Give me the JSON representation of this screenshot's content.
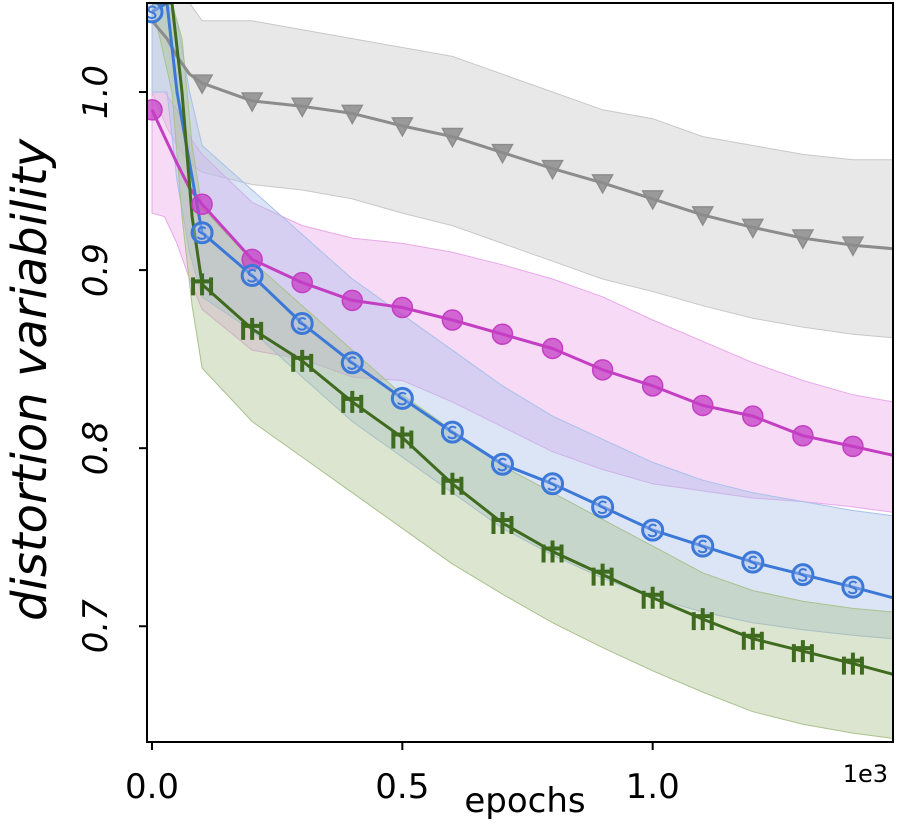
{
  "chart_data": {
    "type": "line",
    "xlabel": "epochs",
    "ylabel": "distortion variability",
    "x_offset_label": "1e3",
    "xlim": [
      -0.01,
      1.48
    ],
    "ylim": [
      0.635,
      1.05
    ],
    "xticks": [
      0.0,
      0.5,
      1.0
    ],
    "xtick_labels": [
      "0.0",
      "0.5",
      "1.0"
    ],
    "yticks": [
      0.7,
      0.8,
      0.9,
      1.0
    ],
    "ytick_labels": [
      "0.7",
      "0.8",
      "0.9",
      "1.0"
    ],
    "grid": false,
    "legend": "none",
    "series": [
      {
        "color": "#8c8c8c",
        "band_color": "#c8c8c8",
        "marker": "triangle-down",
        "x": [
          0.0,
          0.03,
          0.05,
          0.075,
          0.1,
          0.2,
          0.3,
          0.4,
          0.5,
          0.6,
          0.7,
          0.8,
          0.9,
          1.0,
          1.1,
          1.2,
          1.3,
          1.4,
          1.48
        ],
        "y": [
          1.04,
          1.03,
          1.02,
          1.01,
          1.005,
          0.995,
          0.992,
          0.988,
          0.981,
          0.975,
          0.966,
          0.957,
          0.949,
          0.94,
          0.931,
          0.924,
          0.918,
          0.914,
          0.912
        ],
        "upper": [
          1.05,
          1.05,
          1.05,
          1.05,
          1.04,
          1.04,
          1.035,
          1.03,
          1.025,
          1.02,
          1.01,
          1.0,
          0.99,
          0.985,
          0.975,
          0.97,
          0.965,
          0.962,
          0.962
        ],
        "lower": [
          1.0,
          0.98,
          0.97,
          0.96,
          0.955,
          0.948,
          0.945,
          0.94,
          0.932,
          0.925,
          0.915,
          0.905,
          0.895,
          0.888,
          0.88,
          0.873,
          0.868,
          0.864,
          0.862
        ],
        "marker_x": [
          0.1,
          0.2,
          0.3,
          0.4,
          0.5,
          0.6,
          0.7,
          0.8,
          0.9,
          1.0,
          1.1,
          1.2,
          1.3,
          1.4
        ],
        "marker_y": [
          1.005,
          0.995,
          0.992,
          0.988,
          0.981,
          0.975,
          0.966,
          0.957,
          0.949,
          0.94,
          0.931,
          0.924,
          0.918,
          0.914
        ]
      },
      {
        "color": "#c43ec4",
        "band_color": "#e9a8e9",
        "marker": "circle",
        "x": [
          0.0,
          0.025,
          0.05,
          0.075,
          0.1,
          0.2,
          0.3,
          0.4,
          0.5,
          0.6,
          0.7,
          0.8,
          0.9,
          1.0,
          1.1,
          1.2,
          1.3,
          1.4,
          1.48
        ],
        "y": [
          0.99,
          0.975,
          0.96,
          0.946,
          0.937,
          0.906,
          0.893,
          0.883,
          0.879,
          0.872,
          0.864,
          0.856,
          0.844,
          0.835,
          0.824,
          0.818,
          0.807,
          0.801,
          0.796
        ],
        "upper": [
          1.0,
          1.0,
          0.99,
          0.975,
          0.965,
          0.938,
          0.925,
          0.918,
          0.915,
          0.91,
          0.903,
          0.895,
          0.885,
          0.872,
          0.86,
          0.848,
          0.838,
          0.83,
          0.826
        ],
        "lower": [
          0.932,
          0.93,
          0.915,
          0.895,
          0.878,
          0.855,
          0.85,
          0.84,
          0.838,
          0.826,
          0.812,
          0.798,
          0.788,
          0.78,
          0.776,
          0.772,
          0.77,
          0.767,
          0.764
        ],
        "marker_x": [
          0.0,
          0.1,
          0.2,
          0.3,
          0.4,
          0.5,
          0.6,
          0.7,
          0.8,
          0.9,
          1.0,
          1.1,
          1.2,
          1.3,
          1.4
        ],
        "marker_y": [
          0.99,
          0.937,
          0.906,
          0.893,
          0.883,
          0.879,
          0.872,
          0.864,
          0.856,
          0.844,
          0.835,
          0.824,
          0.818,
          0.807,
          0.801
        ]
      },
      {
        "color": "#3c78d8",
        "band_color": "#a9c0ea",
        "marker": "circled-s",
        "x": [
          0.0,
          0.03,
          0.05,
          0.075,
          0.1,
          0.2,
          0.3,
          0.4,
          0.5,
          0.6,
          0.7,
          0.8,
          0.9,
          1.0,
          1.1,
          1.2,
          1.3,
          1.4,
          1.48
        ],
        "y": [
          1.045,
          1.05,
          1.0,
          0.96,
          0.921,
          0.897,
          0.87,
          0.848,
          0.828,
          0.809,
          0.791,
          0.78,
          0.767,
          0.754,
          0.745,
          0.736,
          0.729,
          0.722,
          0.716
        ],
        "upper": [
          1.05,
          1.05,
          1.04,
          1.0,
          0.97,
          0.945,
          0.92,
          0.895,
          0.875,
          0.855,
          0.835,
          0.818,
          0.805,
          0.792,
          0.782,
          0.775,
          0.77,
          0.765,
          0.762
        ],
        "lower": [
          1.0,
          1.0,
          0.95,
          0.91,
          0.885,
          0.866,
          0.84,
          0.815,
          0.795,
          0.775,
          0.755,
          0.74,
          0.727,
          0.716,
          0.708,
          0.702,
          0.698,
          0.695,
          0.693
        ],
        "marker_x": [
          0.0,
          0.1,
          0.2,
          0.3,
          0.4,
          0.5,
          0.6,
          0.7,
          0.8,
          0.9,
          1.0,
          1.1,
          1.2,
          1.3,
          1.4
        ],
        "marker_y": [
          1.045,
          0.921,
          0.897,
          0.87,
          0.848,
          0.828,
          0.809,
          0.791,
          0.78,
          0.767,
          0.754,
          0.745,
          0.736,
          0.729,
          0.722
        ]
      },
      {
        "color": "#3f6b1f",
        "band_color": "#a9c28e",
        "marker": "trident",
        "x": [
          0.0,
          0.04,
          0.06,
          0.08,
          0.1,
          0.2,
          0.3,
          0.4,
          0.5,
          0.6,
          0.7,
          0.8,
          0.9,
          1.0,
          1.1,
          1.2,
          1.3,
          1.4,
          1.48
        ],
        "y": [
          1.05,
          1.05,
          1.0,
          0.93,
          0.892,
          0.867,
          0.849,
          0.826,
          0.806,
          0.78,
          0.758,
          0.742,
          0.729,
          0.716,
          0.704,
          0.693,
          0.686,
          0.679,
          0.673
        ],
        "upper": [
          1.05,
          1.05,
          1.03,
          0.97,
          0.935,
          0.905,
          0.88,
          0.855,
          0.83,
          0.81,
          0.79,
          0.775,
          0.76,
          0.745,
          0.73,
          0.72,
          0.714,
          0.71,
          0.708
        ],
        "lower": [
          1.05,
          1.0,
          0.93,
          0.88,
          0.845,
          0.815,
          0.795,
          0.775,
          0.755,
          0.735,
          0.718,
          0.702,
          0.688,
          0.675,
          0.663,
          0.652,
          0.645,
          0.64,
          0.637
        ],
        "marker_x": [
          0.1,
          0.2,
          0.3,
          0.4,
          0.5,
          0.6,
          0.7,
          0.8,
          0.9,
          1.0,
          1.1,
          1.2,
          1.3,
          1.4
        ],
        "marker_y": [
          0.892,
          0.867,
          0.849,
          0.826,
          0.806,
          0.78,
          0.758,
          0.742,
          0.729,
          0.716,
          0.704,
          0.693,
          0.686,
          0.679
        ]
      }
    ]
  }
}
